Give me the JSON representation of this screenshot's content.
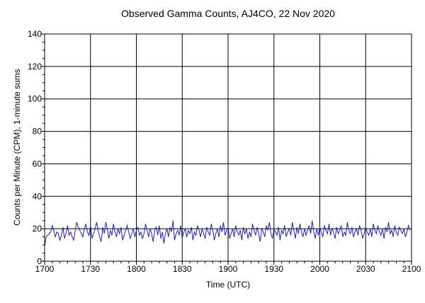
{
  "chart_data": {
    "type": "line",
    "title": "Observed Gamma Counts, AJ4CO, 22 Nov 2020",
    "xlabel": "Time (UTC)",
    "ylabel": "Counts per Minute (CPM), 1-minute sums",
    "ylim": [
      0,
      140
    ],
    "y_ticks": [
      "0",
      "20",
      "40",
      "60",
      "80",
      "100",
      "120",
      "140"
    ],
    "x_ticks": [
      "1700",
      "1730",
      "1800",
      "1830",
      "1900",
      "1930",
      "2000",
      "2030",
      "2100"
    ],
    "xlim_minutes": [
      0,
      240
    ],
    "x_tick_minutes": [
      0,
      30,
      60,
      90,
      120,
      150,
      180,
      210,
      240
    ],
    "grid": true,
    "line_color": "#2020a0",
    "series": [
      {
        "name": "",
        "x_step_minutes": 1,
        "values": [
          9,
          15,
          16,
          17,
          18,
          22,
          19,
          15,
          18,
          17,
          13,
          16,
          21,
          14,
          17,
          22,
          16,
          18,
          15,
          13,
          19,
          24,
          21,
          19,
          17,
          15,
          20,
          23,
          18,
          16,
          22,
          14,
          17,
          20,
          24,
          19,
          15,
          12,
          21,
          17,
          24,
          20,
          14,
          19,
          16,
          23,
          18,
          15,
          20,
          17,
          21,
          13,
          16,
          19,
          22,
          18,
          14,
          17,
          20,
          15,
          19,
          21,
          16,
          18,
          14,
          17,
          23,
          19,
          15,
          20,
          17,
          12,
          19,
          21,
          16,
          22,
          14,
          18,
          11,
          17,
          20,
          15,
          21,
          18,
          25,
          13,
          17,
          19,
          16,
          22,
          14,
          18,
          20,
          15,
          19,
          17,
          21,
          13,
          18,
          16,
          22,
          19,
          15,
          20,
          17,
          14,
          21,
          18,
          16,
          23,
          19,
          13,
          17,
          20,
          15,
          22,
          18,
          24,
          16,
          19,
          21,
          14,
          17,
          20,
          15,
          22,
          18,
          16,
          19,
          13,
          21,
          17,
          20,
          14,
          18,
          15,
          23,
          19,
          16,
          21,
          17,
          12,
          20,
          18,
          15,
          22,
          19,
          24,
          17,
          14,
          20,
          18,
          16,
          21,
          13,
          19,
          17,
          22,
          15,
          18,
          20,
          16,
          24,
          19,
          14,
          21,
          17,
          23,
          18,
          15,
          20,
          16,
          19,
          22,
          17,
          25,
          18,
          14,
          20,
          16,
          21,
          18,
          15,
          22,
          19,
          17,
          23,
          16,
          20,
          18,
          14,
          21,
          17,
          19,
          22,
          15,
          18,
          16,
          24,
          19,
          17,
          21,
          15,
          18,
          20,
          16,
          22,
          19,
          14,
          17,
          21,
          18,
          16,
          20,
          15,
          23,
          19,
          17,
          22,
          18,
          16,
          20,
          14,
          21,
          18,
          24,
          17,
          19,
          15,
          22,
          18,
          16,
          21,
          19,
          17,
          20,
          15,
          18,
          22,
          19
        ]
      }
    ]
  }
}
